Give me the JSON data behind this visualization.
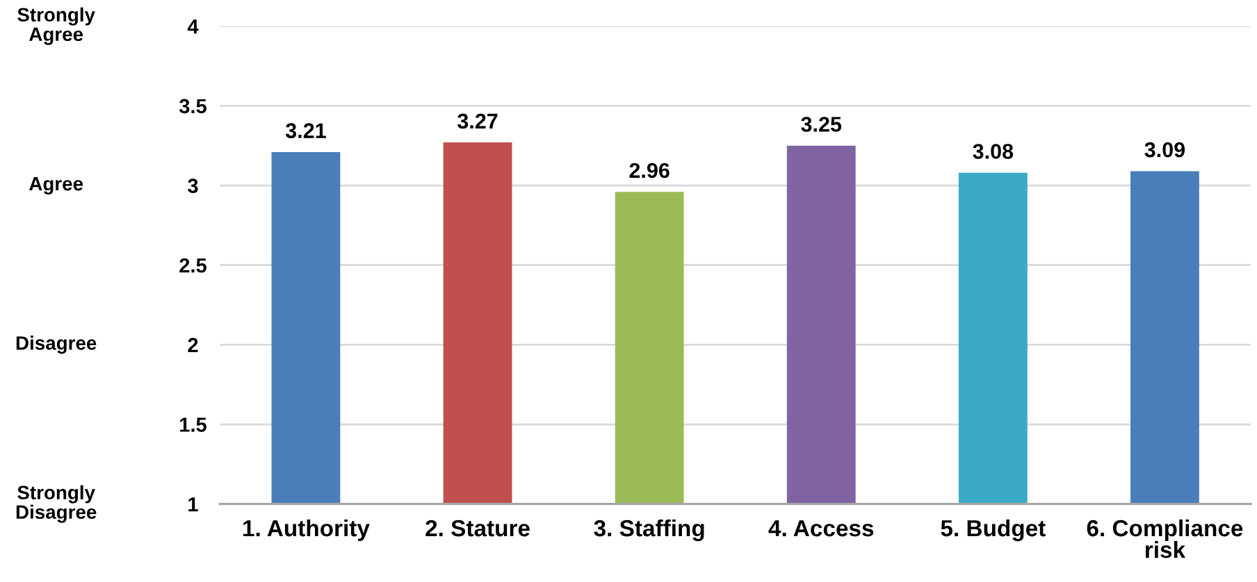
{
  "chart_data": {
    "type": "bar",
    "categories": [
      "1. Authority",
      "2. Stature",
      "3. Staffing",
      "4. Access",
      "5. Budget",
      "6. Compliance risk"
    ],
    "values": [
      3.21,
      3.27,
      2.96,
      3.25,
      3.08,
      3.09
    ],
    "colors": [
      "#4a7ebb",
      "#c0504d",
      "#9bbb59",
      "#8064a2",
      "#3aaac6",
      "#4a7ebb"
    ],
    "ylim": [
      1,
      4
    ],
    "yticks": [
      1,
      1.5,
      2,
      2.5,
      3,
      3.5,
      4
    ],
    "annotations": [
      "Strongly\nAgree",
      "Agree",
      "Disagree",
      "Strongly\nDisagree"
    ],
    "grid": "y",
    "data_labels": true
  }
}
